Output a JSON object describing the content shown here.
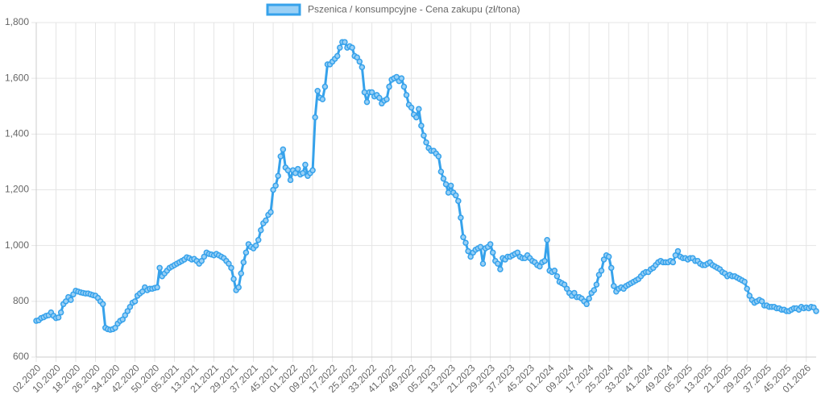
{
  "chart_data": {
    "type": "line",
    "categories": [
      "02.2020",
      null,
      null,
      null,
      null,
      null,
      null,
      null,
      "10.2020",
      null,
      null,
      null,
      null,
      null,
      null,
      null,
      "18.2020",
      null,
      null,
      null,
      null,
      null,
      null,
      null,
      "26.2020",
      null,
      null,
      null,
      null,
      null,
      null,
      null,
      "34.2020",
      null,
      null,
      null,
      null,
      null,
      null,
      null,
      "42.2020",
      null,
      null,
      null,
      null,
      null,
      null,
      null,
      "50.2020",
      null,
      null,
      null,
      null,
      null,
      null,
      null,
      "05.2021",
      null,
      null,
      null,
      null,
      null,
      null,
      null,
      "13.2021",
      null,
      null,
      null,
      null,
      null,
      null,
      null,
      "21.2021",
      null,
      null,
      null,
      null,
      null,
      null,
      null,
      "29.2021",
      null,
      null,
      null,
      null,
      null,
      null,
      null,
      "37.2021",
      null,
      null,
      null,
      null,
      null,
      null,
      null,
      "45.2021",
      null,
      null,
      null,
      null,
      null,
      null,
      null,
      "01.2022",
      null,
      null,
      null,
      null,
      null,
      null,
      null,
      "09.2022",
      null,
      null,
      null,
      null,
      null,
      null,
      null,
      "17.2022",
      null,
      null,
      null,
      null,
      null,
      null,
      null,
      "25.2022",
      null,
      null,
      null,
      null,
      null,
      null,
      null,
      "33.2022",
      null,
      null,
      null,
      null,
      null,
      null,
      null,
      "41.2022",
      null,
      null,
      null,
      null,
      null,
      null,
      null,
      "49.2022",
      null,
      null,
      null,
      null,
      null,
      null,
      null,
      "05.2023",
      null,
      null,
      null,
      null,
      null,
      null,
      null,
      "13.2023",
      null,
      null,
      null,
      null,
      null,
      null,
      null,
      "21.2023",
      null,
      null,
      null,
      null,
      null,
      null,
      null,
      "29.2023",
      null,
      null,
      null,
      null,
      null,
      null,
      null,
      "37.2023",
      null,
      null,
      null,
      null,
      null,
      null,
      null,
      "45.2023",
      null,
      null,
      null,
      null,
      null,
      null,
      null,
      "01.2024",
      null,
      null,
      null,
      null,
      null,
      null,
      null,
      "09.2024",
      null,
      null,
      null,
      null,
      null,
      null,
      null,
      "17.2024",
      null,
      null,
      null,
      null,
      null,
      null,
      null,
      "25.2024",
      null,
      null,
      null,
      null,
      null,
      null,
      null,
      "33.2024",
      null,
      null,
      null,
      null,
      null,
      null,
      null,
      "41.2024",
      null,
      null,
      null,
      null,
      null,
      null,
      null,
      "49.2024",
      null,
      null,
      null,
      null,
      null,
      null,
      null,
      "05.2025",
      null,
      null,
      null,
      null,
      null,
      null,
      null,
      "13.2025",
      null,
      null,
      null,
      null,
      null,
      null,
      null,
      "21.2025",
      null,
      null,
      null,
      null,
      null,
      null,
      null,
      "29.2025",
      null,
      null,
      null,
      null,
      null,
      null,
      null,
      "37.2025",
      null,
      null,
      null,
      null,
      null,
      null,
      null,
      "45.2025",
      null,
      null,
      null,
      null,
      null,
      null,
      null,
      "01.2026",
      null,
      null,
      null,
      null
    ],
    "series": [
      {
        "name": "Pszenica / konsumpcyjne - Cena zakupu (zł/tona)",
        "color": "#36a2eb",
        "fill": "#9ad0f5",
        "values": [
          730,
          732,
          740,
          743,
          748,
          750,
          760,
          748,
          740,
          742,
          760,
          790,
          800,
          815,
          805,
          825,
          838,
          835,
          832,
          830,
          828,
          828,
          825,
          822,
          820,
          812,
          800,
          790,
          705,
          700,
          698,
          700,
          705,
          720,
          730,
          735,
          750,
          765,
          780,
          795,
          800,
          820,
          828,
          835,
          850,
          840,
          845,
          845,
          848,
          850,
          920,
          890,
          900,
          910,
          920,
          925,
          930,
          935,
          940,
          945,
          950,
          958,
          955,
          950,
          952,
          945,
          935,
          945,
          960,
          975,
          970,
          968,
          965,
          970,
          965,
          960,
          955,
          945,
          935,
          920,
          880,
          840,
          850,
          900,
          940,
          975,
          1005,
          995,
          990,
          1000,
          1020,
          1055,
          1080,
          1090,
          1110,
          1120,
          1200,
          1215,
          1250,
          1320,
          1345,
          1280,
          1270,
          1235,
          1270,
          1260,
          1275,
          1255,
          1260,
          1290,
          1250,
          1260,
          1270,
          1460,
          1555,
          1530,
          1525,
          1570,
          1650,
          1650,
          1660,
          1670,
          1680,
          1710,
          1730,
          1730,
          1710,
          1715,
          1710,
          1680,
          1675,
          1660,
          1640,
          1550,
          1515,
          1550,
          1550,
          1535,
          1540,
          1530,
          1510,
          1520,
          1525,
          1570,
          1595,
          1600,
          1605,
          1590,
          1600,
          1570,
          1540,
          1505,
          1495,
          1470,
          1460,
          1490,
          1430,
          1395,
          1370,
          1350,
          1340,
          1340,
          1330,
          1320,
          1265,
          1240,
          1220,
          1190,
          1215,
          1190,
          1180,
          1160,
          1100,
          1030,
          1010,
          980,
          960,
          975,
          985,
          990,
          995,
          935,
          990,
          995,
          1005,
          975,
          945,
          935,
          915,
          955,
          950,
          960,
          960,
          965,
          970,
          975,
          960,
          955,
          955,
          965,
          955,
          945,
          940,
          930,
          925,
          940,
          945,
          1020,
          910,
          905,
          910,
          890,
          870,
          865,
          860,
          845,
          830,
          820,
          830,
          815,
          815,
          810,
          800,
          790,
          810,
          830,
          840,
          860,
          895,
          910,
          950,
          965,
          960,
          920,
          855,
          835,
          845,
          850,
          845,
          855,
          860,
          865,
          870,
          875,
          880,
          890,
          900,
          905,
          905,
          915,
          920,
          930,
          940,
          945,
          940,
          940,
          940,
          945,
          940,
          965,
          980,
          960,
          955,
          955,
          950,
          955,
          955,
          945,
          945,
          935,
          930,
          930,
          935,
          940,
          930,
          925,
          920,
          915,
          905,
          900,
          890,
          895,
          890,
          890,
          885,
          880,
          875,
          870,
          845,
          820,
          805,
          795,
          800,
          805,
          800,
          785,
          785,
          780,
          780,
          780,
          775,
          775,
          770,
          770,
          765,
          765,
          770,
          775,
          775,
          770,
          780,
          775,
          778,
          775,
          780,
          778,
          765
        ]
      }
    ],
    "ylim": [
      600,
      1800
    ],
    "yticks": [
      600,
      800,
      {
        "value": 1000,
        "label": "1,000"
      },
      {
        "value": 1200,
        "label": "1,200"
      },
      {
        "value": 1400,
        "label": "1,400"
      },
      {
        "value": 1600,
        "label": "1,600"
      },
      {
        "value": 1800,
        "label": "1,800"
      }
    ],
    "grid": true,
    "legend": "top"
  }
}
